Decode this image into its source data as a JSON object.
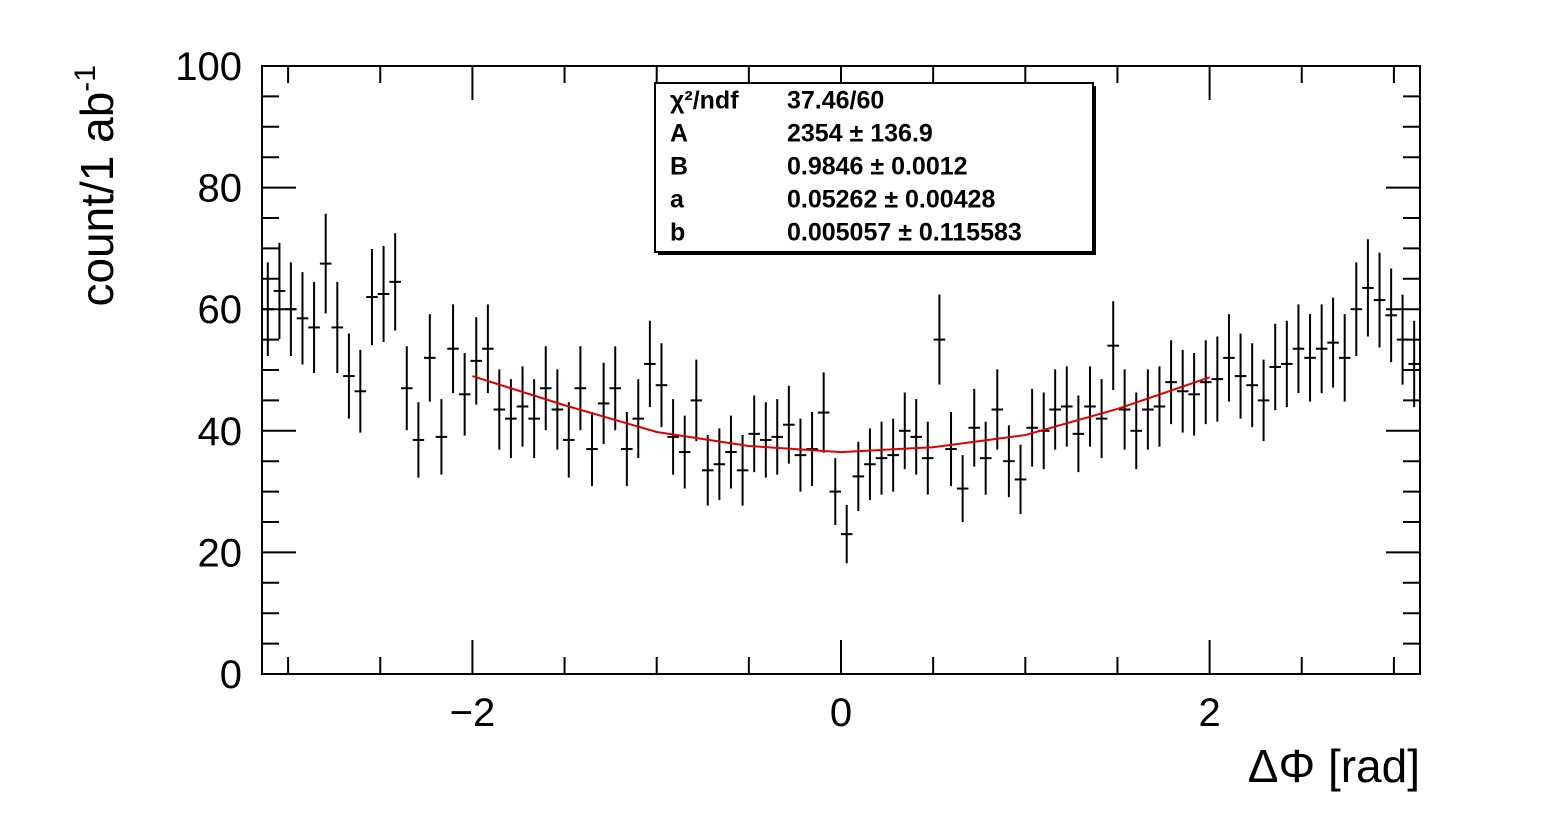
{
  "chart_data": {
    "type": "errorbar",
    "x_label": "ΔΦ [rad]",
    "y_label": "count/1 ab",
    "y_label_sup": "-1",
    "xlim": [
      -3.1416,
      3.1416
    ],
    "ylim": [
      0,
      100
    ],
    "xticks": [
      {
        "value": -2,
        "label": "−2"
      },
      0,
      2
    ],
    "xminorticks": [
      -3,
      -2.5,
      -1.5,
      -1,
      -0.5,
      0.5,
      1,
      1.5,
      2.5,
      3
    ],
    "yticks": [
      0,
      20,
      40,
      60,
      80,
      100
    ],
    "yminorticks": [
      5,
      10,
      15,
      25,
      30,
      35,
      45,
      50,
      55,
      65,
      70,
      75,
      85,
      90,
      95
    ],
    "color": "#000000",
    "x_error": 0.0314,
    "x": [
      -3.11,
      -3.047,
      -2.985,
      -2.922,
      -2.859,
      -2.796,
      -2.733,
      -2.67,
      -2.608,
      -2.545,
      -2.482,
      -2.419,
      -2.356,
      -2.293,
      -2.231,
      -2.168,
      -2.105,
      -2.042,
      -1.979,
      -1.916,
      -1.854,
      -1.791,
      -1.728,
      -1.665,
      -1.602,
      -1.539,
      -1.477,
      -1.414,
      -1.351,
      -1.288,
      -1.225,
      -1.162,
      -1.1,
      -1.037,
      -0.974,
      -0.911,
      -0.848,
      -0.785,
      -0.723,
      -0.66,
      -0.597,
      -0.534,
      -0.471,
      -0.408,
      -0.346,
      -0.283,
      -0.22,
      -0.157,
      -0.094,
      -0.031,
      0.031,
      0.094,
      0.157,
      0.22,
      0.283,
      0.346,
      0.408,
      0.471,
      0.534,
      0.597,
      0.66,
      0.723,
      0.785,
      0.848,
      0.911,
      0.974,
      1.037,
      1.1,
      1.162,
      1.225,
      1.288,
      1.351,
      1.414,
      1.477,
      1.539,
      1.602,
      1.665,
      1.728,
      1.791,
      1.854,
      1.916,
      1.979,
      2.042,
      2.105,
      2.168,
      2.231,
      2.293,
      2.356,
      2.419,
      2.482,
      2.545,
      2.608,
      2.67,
      2.733,
      2.796,
      2.859,
      2.922,
      2.985,
      3.047,
      3.11
    ],
    "values": [
      60,
      63,
      60,
      58.5,
      57,
      67.5,
      57,
      49,
      46.5,
      62,
      62.5,
      64.5,
      47,
      38.5,
      52,
      39,
      53.5,
      46,
      51.5,
      53.5,
      43.5,
      42,
      44,
      42,
      47,
      43.5,
      38.5,
      47,
      37,
      44.5,
      47,
      37,
      42,
      51,
      47.5,
      39,
      36.5,
      45,
      33.5,
      34.5,
      36.5,
      33.5,
      39.5,
      38.5,
      39,
      41,
      36,
      37,
      43,
      30,
      23,
      32.5,
      34.5,
      35.5,
      36,
      40,
      39,
      35.5,
      55,
      37,
      30.5,
      40.5,
      35.5,
      43.5,
      35,
      32,
      40.5,
      40,
      43.5,
      44,
      39.5,
      44,
      42,
      54,
      43.5,
      40,
      43.5,
      44,
      48,
      46.5,
      46,
      48,
      48.5,
      52,
      49,
      47.5,
      45,
      50.5,
      51,
      53.5,
      52,
      53.5,
      54.5,
      52,
      60,
      63.5,
      61.5,
      59,
      55,
      51
    ],
    "errors": [
      7.7,
      7.9,
      7.7,
      7.6,
      7.5,
      8.2,
      7.5,
      7.0,
      6.8,
      7.9,
      7.9,
      8.0,
      6.9,
      6.2,
      7.2,
      6.2,
      7.3,
      6.8,
      7.2,
      7.3,
      6.6,
      6.5,
      6.6,
      6.5,
      6.9,
      6.6,
      6.2,
      6.9,
      6.1,
      6.7,
      6.9,
      6.1,
      6.5,
      7.1,
      6.9,
      6.2,
      6.0,
      6.7,
      5.8,
      5.9,
      6.0,
      5.8,
      6.3,
      6.2,
      6.2,
      6.4,
      6.0,
      6.1,
      6.6,
      5.5,
      4.8,
      5.7,
      5.9,
      6.0,
      6.0,
      6.3,
      6.2,
      6.0,
      7.4,
      6.1,
      5.5,
      6.4,
      6.0,
      6.6,
      5.9,
      5.7,
      6.4,
      6.3,
      6.6,
      6.6,
      6.3,
      6.6,
      6.5,
      7.3,
      6.6,
      6.3,
      6.6,
      6.6,
      6.9,
      6.8,
      6.8,
      6.9,
      7.0,
      7.2,
      7.0,
      6.9,
      6.7,
      7.1,
      7.1,
      7.3,
      7.2,
      7.3,
      7.4,
      7.2,
      7.7,
      8.0,
      7.8,
      7.7,
      7.4,
      7.1
    ],
    "fit": {
      "color": "#e00000",
      "x": [
        -2,
        -1.5,
        -1,
        -0.5,
        0,
        0.5,
        1,
        1.5,
        2
      ],
      "y": [
        49,
        44.2,
        39.8,
        37.5,
        36.5,
        37.3,
        39.3,
        43.6,
        48.8
      ]
    },
    "stats": [
      [
        "χ²/ndf",
        "37.46/60"
      ],
      [
        "A",
        "2354 ± 136.9"
      ],
      [
        "B",
        "0.9846 ± 0.0012"
      ],
      [
        "a",
        "0.05262 ± 0.00428"
      ],
      [
        "b",
        "0.005057 ± 0.115583"
      ]
    ]
  }
}
